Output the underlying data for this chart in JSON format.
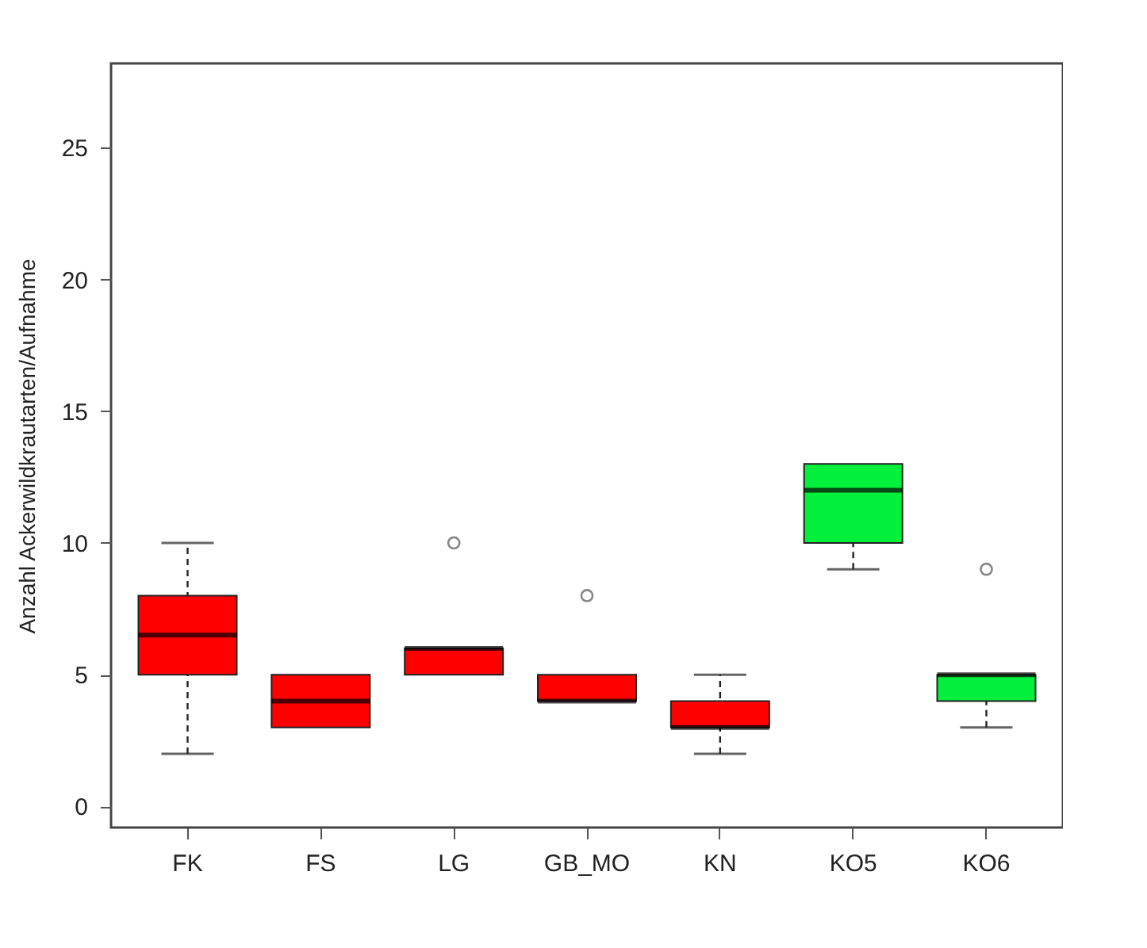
{
  "chart_data": {
    "type": "box",
    "ylabel": "Anzahl Ackerwildkrautarten/Aufnahme",
    "categories": [
      "FK",
      "FS",
      "LG",
      "GB_MO",
      "KN",
      "KO5",
      "KO6"
    ],
    "colors": [
      "#ff0000",
      "#ff0000",
      "#ff0000",
      "#ff0000",
      "#ff0000",
      "#00f03c",
      "#00f03c"
    ],
    "boxes": [
      {
        "low": 2,
        "q1": 5,
        "median": 6.5,
        "q3": 8,
        "high": 10
      },
      {
        "low": 3,
        "q1": 3,
        "median": 4,
        "q3": 5,
        "high": 5
      },
      {
        "low": 5,
        "q1": 5,
        "median": 6,
        "q3": 6,
        "high": 6,
        "outliers": [
          10
        ]
      },
      {
        "low": 4,
        "q1": 4,
        "median": 4,
        "q3": 5,
        "high": 5,
        "outliers": [
          8
        ]
      },
      {
        "low": 2,
        "q1": 3,
        "median": 3,
        "q3": 4,
        "high": 5
      },
      {
        "low": 9,
        "q1": 10,
        "median": 12,
        "q3": 13,
        "high": 13
      },
      {
        "low": 3,
        "q1": 4,
        "median": 5,
        "q3": 5,
        "high": 5,
        "outliers": [
          9
        ]
      }
    ],
    "ylim": [
      -0.8,
      28.2
    ],
    "yticks": [
      0,
      5,
      10,
      15,
      20,
      25
    ],
    "grid": false
  }
}
